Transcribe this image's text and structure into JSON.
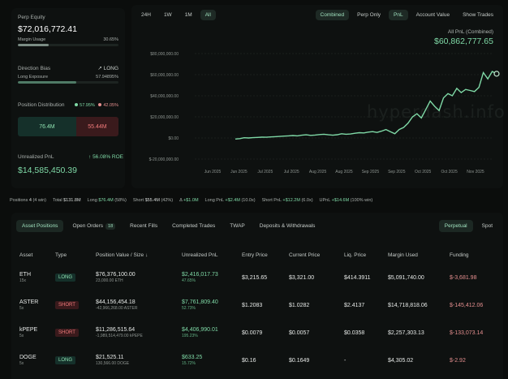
{
  "stats": {
    "perp_equity_label": "Perp Equity",
    "perp_equity_value": "$72,016,772.41",
    "margin_usage_label": "Margin Usage",
    "margin_usage_value": "30.65%",
    "margin_usage_fraction": 0.3065,
    "direction_bias_label": "Direction Bias",
    "direction_bias_value": "LONG",
    "long_exposure_label": "Long Exposure",
    "long_exposure_value": "57.94895%",
    "long_exposure_fraction": 0.5795,
    "position_distribution_label": "Position Distribution",
    "dist_long_pct": "57.95%",
    "dist_short_pct": "42.05%",
    "dist_long_value": "76.4M",
    "dist_short_value": "55.44M",
    "dist_long_fraction": 0.5795,
    "unrealized_pnl_label": "Unrealized PnL",
    "unrealized_pnl_roe": "56.08% ROE",
    "unrealized_pnl_value": "$14,585,450.39"
  },
  "chart_panel": {
    "range_tabs": [
      "24H",
      "1W",
      "1M",
      "All"
    ],
    "active_range": "All",
    "view_tabs": [
      "Combined",
      "Perp Only",
      "PnL",
      "Account Value",
      "Show Trades"
    ],
    "all_pnl_label": "All PnL (Combined)",
    "all_pnl_value": "$60,862,777.65",
    "watermark": "hyperdash.info"
  },
  "chart_data": {
    "type": "line",
    "yticks": [
      "$80,000,000.00",
      "$60,000,000.00",
      "$40,000,000.00",
      "$20,000,000.00",
      "$0.00",
      "$-20,000,000.00"
    ],
    "ytick_values": [
      80000000,
      60000000,
      40000000,
      20000000,
      0,
      -20000000
    ],
    "ylim": [
      -20000000,
      80000000
    ],
    "xticks": [
      "Jun 2025",
      "Jun 2025",
      "Jul 2025",
      "Jul 2025",
      "Aug 2025",
      "Aug 2025",
      "Sep 2025",
      "Sep 2025",
      "Oct 2025",
      "Oct 2025",
      "Nov 2025"
    ],
    "line_color": "#7fd9a6",
    "series": [
      {
        "values": [
          -1000000,
          -600000,
          200000,
          0,
          300000,
          500000,
          800000,
          700000,
          1000000,
          1200000,
          1500000,
          1800000,
          2000000,
          2300000,
          2000000,
          2600000,
          3000000,
          2500000,
          2800000,
          3200000,
          3500000,
          3000000,
          2600000,
          3100000,
          4000000,
          3500000,
          3800000,
          4500000,
          5000000,
          4800000,
          5500000,
          6000000,
          5200000,
          6500000,
          8000000,
          6000000,
          4000000,
          8000000,
          10000000,
          14000000,
          20000000,
          23000000,
          19000000,
          27000000,
          35000000,
          30000000,
          26000000,
          38000000,
          42000000,
          40000000,
          47000000,
          43000000,
          46000000,
          45000000,
          44000000,
          48000000,
          62000000,
          56000000,
          63000000,
          60862777
        ]
      }
    ]
  },
  "positions_bar": {
    "positions_label": "Positions",
    "positions_count": "4",
    "positions_wins": "(4 win)",
    "total_label": "Total",
    "total_value": "$131.8M",
    "long_label": "Long",
    "long_value": "$76.4M",
    "long_pct": "(58%)",
    "short_label": "Short",
    "short_value": "$55.4M",
    "short_pct": "(42%)",
    "upnl1_label": "Δ",
    "upnl1_value": "+$1.0M",
    "longpnl_label": "Long PnL",
    "longpnl_value": "+$2.4M",
    "longpnl_pct": "(10.0x)",
    "shortpnl_label": "Short PnL",
    "shortpnl_value": "+$12.2M",
    "shortpnl_pct": "(6.0x)",
    "upnl_label": "UPnL",
    "upnl_value": "+$14.6M",
    "upnl_pct": "(100% win)"
  },
  "table": {
    "tabs": [
      {
        "label": "Asset Positions",
        "active": true
      },
      {
        "label": "Open Orders",
        "badge": "18"
      },
      {
        "label": "Recent Fills"
      },
      {
        "label": "Completed Trades"
      },
      {
        "label": "TWAP"
      },
      {
        "label": "Deposits & Withdrawals"
      }
    ],
    "product_tabs": [
      "Perpetual",
      "Spot"
    ],
    "headers": [
      "Asset",
      "Type",
      "Position Value / Size",
      "Unrealized PnL",
      "Entry Price",
      "Current Price",
      "Liq. Price",
      "Margin Used",
      "Funding"
    ],
    "sort_icon": "↓",
    "rows": [
      {
        "asset": "ETH",
        "lev": "15x",
        "type": "LONG",
        "value": "$76,376,100.00",
        "size": "23,000.00 ETH",
        "pnl": "$2,416,017.73",
        "pnl_pct": "47.65%",
        "entry": "$3,215.65",
        "current": "$3,321.00",
        "liq": "$414.3911",
        "margin": "$5,091,740.00",
        "funding": "$-3,681.98"
      },
      {
        "asset": "ASTER",
        "lev": "5x",
        "type": "SHORT",
        "value": "$44,156,454.18",
        "size": "-42,966,268.00 ASTER",
        "pnl": "$7,761,809.40",
        "pnl_pct": "52.73%",
        "entry": "$1.2083",
        "current": "$1.0282",
        "liq": "$2.4137",
        "margin": "$14,718,818.06",
        "funding": "$-145,412.06"
      },
      {
        "asset": "kPEPE",
        "lev": "5x",
        "type": "SHORT",
        "value": "$11,286,515.64",
        "size": "-1,989,514,479.00 kPEPE",
        "pnl": "$4,406,990.01",
        "pnl_pct": "195.23%",
        "entry": "$0.0079",
        "current": "$0.0057",
        "liq": "$0.0358",
        "margin": "$2,257,303.13",
        "funding": "$-133,073.14"
      },
      {
        "asset": "DOGE",
        "lev": "5x",
        "type": "LONG",
        "value": "$21,525.11",
        "size": "130,566.00 DOGE",
        "pnl": "$633.25",
        "pnl_pct": "15.72%",
        "entry": "$0.16",
        "current": "$0.1649",
        "liq": "-",
        "margin": "$4,305.02",
        "funding": "$-2.92"
      }
    ]
  }
}
